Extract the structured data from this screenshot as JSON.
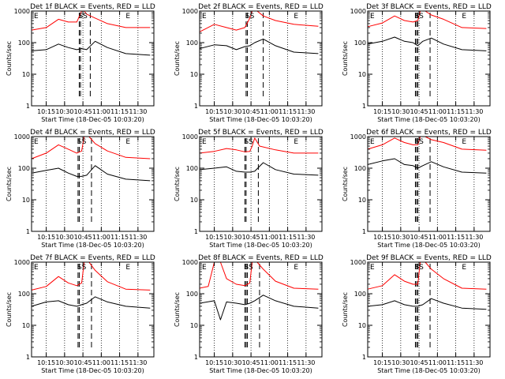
{
  "figure": {
    "xlabel": "Start Time (18-Dec-05 10:03:20)",
    "ylabel": "Counts/sec"
  },
  "colors": {
    "events": "#000000",
    "lld": "#ff0000"
  },
  "chart_data": [
    {
      "type": "line",
      "title": "Det 1f BLACK = Events, RED = LLD",
      "xlabel": "Start Time (18-Dec-05 10:03:20)",
      "ylabel": "Counts/sec",
      "yscale": "log",
      "ylim": [
        1,
        1000
      ],
      "yticks": [
        "1",
        "10",
        "100",
        "1000"
      ],
      "xlim": [
        "10:03",
        "11:43"
      ],
      "xticks": [
        "10:15",
        "10:30",
        "10:45",
        "11:00",
        "11:15",
        "11:30"
      ],
      "annotations": [
        "E",
        "SS",
        "E"
      ],
      "dashed_markers": [
        "10:42",
        "10:43",
        "10:51"
      ],
      "series": [
        {
          "color": "#000000",
          "x": [
            "10:03",
            "10:15",
            "10:25",
            "10:33",
            "10:40",
            "10:44",
            "10:48",
            "10:55",
            "11:05",
            "11:20",
            "11:40"
          ],
          "y": [
            55,
            60,
            90,
            70,
            60,
            65,
            60,
            110,
            70,
            45,
            40
          ]
        },
        {
          "color": "#ff0000",
          "x": [
            "10:03",
            "10:15",
            "10:25",
            "10:33",
            "10:40",
            "10:44",
            "10:46",
            "10:48",
            "10:55",
            "11:05",
            "11:20",
            "11:40"
          ],
          "y": [
            250,
            300,
            550,
            450,
            450,
            1000,
            1000,
            800,
            600,
            400,
            300,
            300
          ]
        }
      ]
    },
    {
      "type": "line",
      "title": "Det 2f BLACK = Events, RED = LLD",
      "xlabel": "Start Time (18-Dec-05 10:03:20)",
      "ylabel": "Counts/sec",
      "yscale": "log",
      "ylim": [
        1,
        1000
      ],
      "yticks": [
        "1",
        "10",
        "100",
        "1000"
      ],
      "xlim": [
        "10:03",
        "11:43"
      ],
      "xticks": [
        "10:15",
        "10:30",
        "10:45",
        "11:00",
        "11:15",
        "11:30"
      ],
      "annotations": [
        "E",
        "SS",
        "E"
      ],
      "dashed_markers": [
        "10:41",
        "10:42",
        "10:55"
      ],
      "series": [
        {
          "color": "#000000",
          "x": [
            "10:03",
            "10:15",
            "10:25",
            "10:33",
            "10:40",
            "10:44",
            "10:48",
            "10:55",
            "11:05",
            "11:20",
            "11:40"
          ],
          "y": [
            65,
            85,
            80,
            60,
            75,
            80,
            100,
            130,
            80,
            50,
            45
          ]
        },
        {
          "color": "#ff0000",
          "x": [
            "10:03",
            "10:15",
            "10:25",
            "10:33",
            "10:40",
            "10:44",
            "10:46",
            "10:50",
            "10:55",
            "11:05",
            "11:20",
            "11:40"
          ],
          "y": [
            220,
            380,
            300,
            250,
            300,
            600,
            1000,
            1000,
            700,
            500,
            380,
            330
          ]
        }
      ]
    },
    {
      "type": "line",
      "title": "Det 3f BLACK = Events, RED = LLD",
      "xlabel": "Start Time (18-Dec-05 10:03:20)",
      "ylabel": "Counts/sec",
      "yscale": "log",
      "ylim": [
        1,
        1000
      ],
      "yticks": [
        "1",
        "10",
        "100",
        "1000"
      ],
      "xlim": [
        "10:03",
        "11:43"
      ],
      "xticks": [
        "10:15",
        "10:30",
        "10:45",
        "11:00",
        "11:15",
        "11:30"
      ],
      "annotations": [
        "E",
        "SS",
        "E"
      ],
      "dashed_markers": [
        "10:42",
        "10:43",
        "10:44",
        "10:54"
      ],
      "series": [
        {
          "color": "#000000",
          "x": [
            "10:03",
            "10:15",
            "10:25",
            "10:33",
            "10:40",
            "10:44",
            "10:48",
            "10:55",
            "11:05",
            "11:20",
            "11:40"
          ],
          "y": [
            90,
            110,
            150,
            110,
            100,
            80,
            110,
            140,
            90,
            60,
            55
          ]
        },
        {
          "color": "#ff0000",
          "x": [
            "10:03",
            "10:15",
            "10:25",
            "10:33",
            "10:40",
            "10:44",
            "10:46",
            "10:50",
            "10:55",
            "11:05",
            "11:20",
            "11:40"
          ],
          "y": [
            320,
            420,
            700,
            500,
            450,
            500,
            1000,
            1000,
            750,
            550,
            300,
            280
          ]
        }
      ]
    },
    {
      "type": "line",
      "title": "Det 4f BLACK = Events, RED = LLD",
      "xlabel": "Start Time (18-Dec-05 10:03:20)",
      "ylabel": "Counts/sec",
      "yscale": "log",
      "ylim": [
        1,
        1000
      ],
      "yticks": [
        "1",
        "10",
        "100",
        "1000"
      ],
      "xlim": [
        "10:03",
        "11:43"
      ],
      "xticks": [
        "10:15",
        "10:30",
        "10:45",
        "11:00",
        "11:15",
        "11:30"
      ],
      "annotations": [
        "E",
        "SS",
        "E"
      ],
      "dashed_markers": [
        "10:41",
        "10:42",
        "10:52"
      ],
      "series": [
        {
          "color": "#000000",
          "x": [
            "10:03",
            "10:15",
            "10:25",
            "10:33",
            "10:40",
            "10:44",
            "10:48",
            "10:55",
            "11:05",
            "11:20",
            "11:40"
          ],
          "y": [
            70,
            85,
            100,
            70,
            55,
            55,
            60,
            120,
            65,
            45,
            40
          ]
        },
        {
          "color": "#ff0000",
          "x": [
            "10:03",
            "10:15",
            "10:25",
            "10:33",
            "10:40",
            "10:44",
            "10:46",
            "10:50",
            "10:55",
            "11:05",
            "11:20",
            "11:40"
          ],
          "y": [
            200,
            300,
            550,
            400,
            300,
            350,
            1000,
            1000,
            600,
            350,
            220,
            200
          ]
        }
      ]
    },
    {
      "type": "line",
      "title": "Det 5f BLACK = Events, RED = LLD",
      "xlabel": "Start Time (18-Dec-05 10:03:20)",
      "ylabel": "Counts/sec",
      "yscale": "log",
      "ylim": [
        1,
        1000
      ],
      "yticks": [
        "1",
        "10",
        "100",
        "1000"
      ],
      "xlim": [
        "10:03",
        "11:43"
      ],
      "xticks": [
        "10:15",
        "10:30",
        "10:45",
        "11:00",
        "11:15",
        "11:30"
      ],
      "annotations": [
        "E",
        "SS",
        "E"
      ],
      "dashed_markers": [
        "10:40",
        "10:41",
        "10:51"
      ],
      "series": [
        {
          "color": "#000000",
          "x": [
            "10:03",
            "10:15",
            "10:25",
            "10:33",
            "10:40",
            "10:44",
            "10:48",
            "10:55",
            "11:05",
            "11:20",
            "11:40"
          ],
          "y": [
            90,
            100,
            110,
            80,
            75,
            75,
            80,
            150,
            90,
            65,
            60
          ]
        },
        {
          "color": "#ff0000",
          "x": [
            "10:03",
            "10:15",
            "10:25",
            "10:33",
            "10:40",
            "10:44",
            "10:46",
            "10:48",
            "10:52",
            "11:05",
            "11:20",
            "11:40"
          ],
          "y": [
            300,
            340,
            420,
            380,
            330,
            340,
            500,
            900,
            500,
            380,
            300,
            300
          ]
        }
      ]
    },
    {
      "type": "line",
      "title": "Det 6f BLACK = Events, RED = LLD",
      "xlabel": "Start Time (18-Dec-05 10:03:20)",
      "ylabel": "Counts/sec",
      "yscale": "log",
      "ylim": [
        1,
        1000
      ],
      "yticks": [
        "1",
        "10",
        "100",
        "1000"
      ],
      "xlim": [
        "10:03",
        "11:43"
      ],
      "xticks": [
        "10:15",
        "10:30",
        "10:45",
        "11:00",
        "11:15",
        "11:30"
      ],
      "annotations": [
        "E",
        "SS",
        "E"
      ],
      "dashed_markers": [
        "10:42",
        "10:43",
        "10:44",
        "10:54"
      ],
      "series": [
        {
          "color": "#000000",
          "x": [
            "10:03",
            "10:15",
            "10:25",
            "10:33",
            "10:40",
            "10:44",
            "10:48",
            "10:55",
            "11:05",
            "11:20",
            "11:40"
          ],
          "y": [
            130,
            170,
            200,
            130,
            120,
            100,
            120,
            160,
            110,
            75,
            70
          ]
        },
        {
          "color": "#ff0000",
          "x": [
            "10:03",
            "10:15",
            "10:25",
            "10:33",
            "10:40",
            "10:44",
            "10:46",
            "10:50",
            "10:55",
            "11:05",
            "11:20",
            "11:40"
          ],
          "y": [
            400,
            550,
            900,
            650,
            550,
            550,
            1000,
            1000,
            800,
            650,
            400,
            370
          ]
        }
      ]
    },
    {
      "type": "line",
      "title": "Det 7f BLACK = Events, RED = LLD",
      "xlabel": "Start Time (18-Dec-05 10:03:20)",
      "ylabel": "Counts/sec",
      "yscale": "log",
      "ylim": [
        1,
        1000
      ],
      "yticks": [
        "1",
        "10",
        "100",
        "1000"
      ],
      "xlim": [
        "10:03",
        "11:43"
      ],
      "xticks": [
        "10:15",
        "10:30",
        "10:45",
        "11:00",
        "11:15",
        "11:30"
      ],
      "annotations": [
        "E",
        "SS",
        "E"
      ],
      "dashed_markers": [
        "10:41",
        "10:42",
        "10:52"
      ],
      "series": [
        {
          "color": "#000000",
          "x": [
            "10:03",
            "10:15",
            "10:25",
            "10:33",
            "10:40",
            "10:44",
            "10:48",
            "10:55",
            "11:05",
            "11:20",
            "11:40"
          ],
          "y": [
            40,
            55,
            60,
            45,
            40,
            45,
            50,
            80,
            55,
            40,
            35
          ]
        },
        {
          "color": "#ff0000",
          "x": [
            "10:03",
            "10:15",
            "10:25",
            "10:33",
            "10:40",
            "10:44",
            "10:46",
            "10:50",
            "10:55",
            "11:05",
            "11:20",
            "11:40"
          ],
          "y": [
            130,
            170,
            350,
            220,
            180,
            220,
            1000,
            1000,
            550,
            240,
            140,
            130
          ]
        }
      ]
    },
    {
      "type": "line",
      "title": "Det 8f BLACK = Events, RED = LLD",
      "xlabel": "Start Time (18-Dec-05 10:03:20)",
      "ylabel": "Counts/sec",
      "yscale": "log",
      "ylim": [
        1,
        1000
      ],
      "yticks": [
        "1",
        "10",
        "100",
        "1000"
      ],
      "xlim": [
        "10:03",
        "11:43"
      ],
      "xticks": [
        "10:15",
        "10:30",
        "10:45",
        "11:00",
        "11:15",
        "11:30"
      ],
      "annotations": [
        "E",
        "SS",
        "E"
      ],
      "dashed_markers": [
        "10:40",
        "10:41",
        "10:42",
        "10:52"
      ],
      "series": [
        {
          "color": "#000000",
          "x": [
            "10:03",
            "10:15",
            "10:20",
            "10:25",
            "10:33",
            "10:40",
            "10:44",
            "10:48",
            "10:55",
            "11:05",
            "11:20",
            "11:40"
          ],
          "y": [
            50,
            60,
            15,
            55,
            50,
            45,
            50,
            60,
            90,
            60,
            40,
            35
          ]
        },
        {
          "color": "#ff0000",
          "x": [
            "10:03",
            "10:10",
            "10:15",
            "10:20",
            "10:25",
            "10:33",
            "10:40",
            "10:44",
            "10:46",
            "10:50",
            "10:55",
            "11:05",
            "11:20",
            "11:40"
          ],
          "y": [
            150,
            170,
            1000,
            1000,
            300,
            200,
            180,
            220,
            1000,
            1000,
            600,
            250,
            150,
            140
          ]
        }
      ]
    },
    {
      "type": "line",
      "title": "Det 9f BLACK = Events, RED = LLD",
      "xlabel": "Start Time (18-Dec-05 10:03:20)",
      "ylabel": "Counts/sec",
      "yscale": "log",
      "ylim": [
        1,
        1000
      ],
      "yticks": [
        "1",
        "10",
        "100",
        "1000"
      ],
      "xlim": [
        "10:03",
        "11:43"
      ],
      "xticks": [
        "10:15",
        "10:30",
        "10:45",
        "11:00",
        "11:15",
        "11:30"
      ],
      "annotations": [
        "E",
        "SS",
        "E"
      ],
      "dashed_markers": [
        "10:42",
        "10:43",
        "10:44",
        "10:54"
      ],
      "series": [
        {
          "color": "#000000",
          "x": [
            "10:03",
            "10:15",
            "10:25",
            "10:33",
            "10:40",
            "10:44",
            "10:48",
            "10:55",
            "11:05",
            "11:20",
            "11:40"
          ],
          "y": [
            40,
            45,
            60,
            45,
            40,
            40,
            45,
            70,
            50,
            35,
            32
          ]
        },
        {
          "color": "#ff0000",
          "x": [
            "10:03",
            "10:15",
            "10:25",
            "10:33",
            "10:40",
            "10:44",
            "10:46",
            "10:50",
            "10:55",
            "11:05",
            "11:20",
            "11:40"
          ],
          "y": [
            140,
            180,
            400,
            250,
            200,
            200,
            1000,
            1000,
            600,
            300,
            150,
            140
          ]
        }
      ]
    }
  ]
}
